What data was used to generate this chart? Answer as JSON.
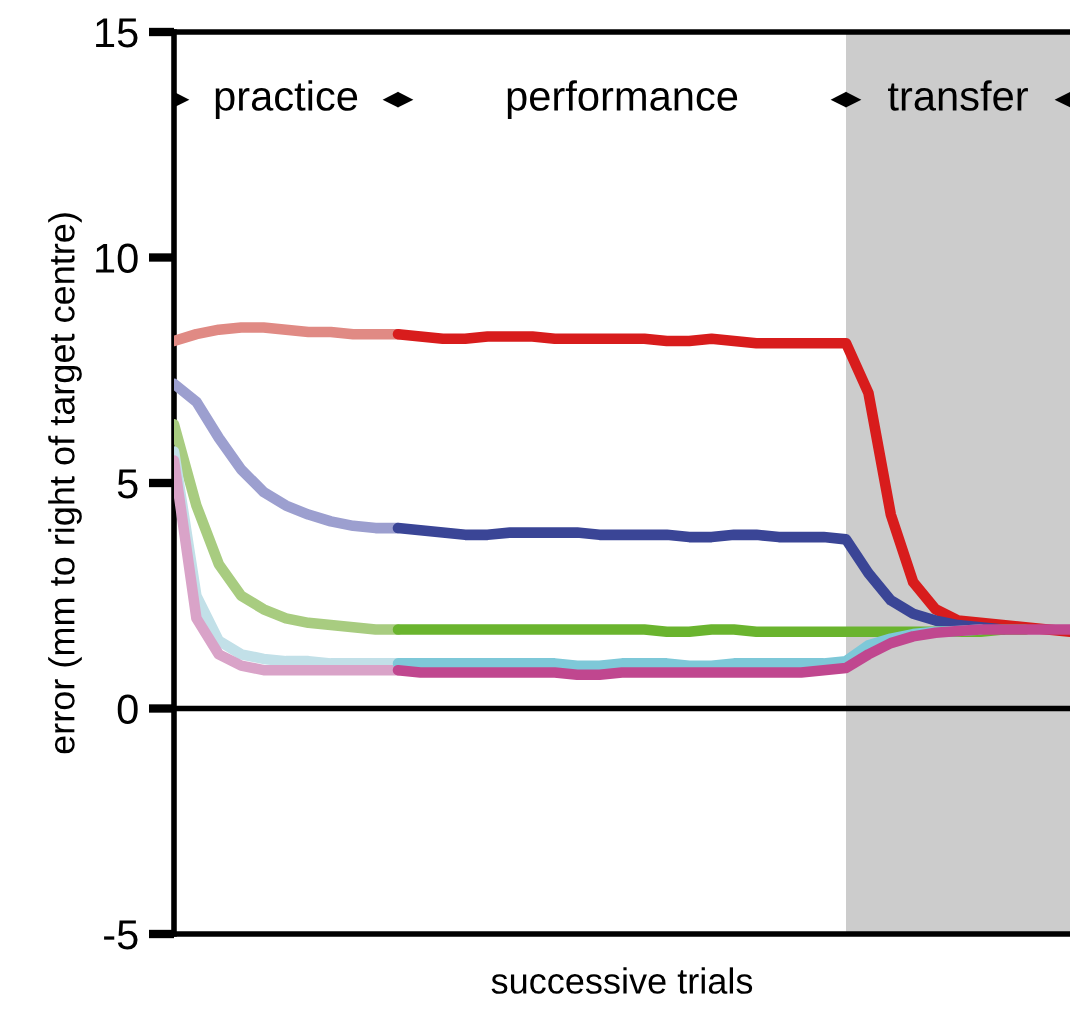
{
  "chart_data": {
    "type": "line",
    "xlabel": "successive trials",
    "ylabel": "error (mm to right of target centre)",
    "ylim": [
      -5,
      15
    ],
    "yticks": [
      -5,
      0,
      5,
      10,
      15
    ],
    "tick_labels": "y",
    "grid": false,
    "legend": false,
    "marker": "none",
    "line_style": "solid",
    "categories": [
      null,
      null,
      null,
      null,
      null,
      null,
      null,
      null,
      null,
      null,
      null,
      null,
      null,
      null,
      null,
      null,
      null,
      null,
      null,
      null,
      null,
      null,
      null,
      null,
      null,
      null,
      null,
      null,
      null,
      null,
      null,
      null,
      null,
      null,
      null,
      null,
      null,
      null,
      null,
      null,
      null
    ],
    "ref_lines": [
      {
        "axis": "y",
        "value": 0,
        "color": "#000000"
      }
    ],
    "annotations": [
      "practice",
      "performance",
      "transfer"
    ],
    "series": [
      {
        "color": "#e08a84",
        "values": [
          8.15,
          8.3,
          8.4,
          8.45,
          8.45,
          8.4,
          8.35,
          8.35,
          8.3,
          8.3,
          8.3,
          null,
          null,
          null,
          null,
          null,
          null,
          null,
          null,
          null,
          null,
          null,
          null,
          null,
          null,
          null,
          null,
          null,
          null,
          null,
          null,
          null,
          null,
          null,
          null,
          null,
          null,
          null,
          null,
          null,
          null
        ]
      },
      {
        "color": "#9c9fcf",
        "values": [
          7.2,
          6.8,
          6.0,
          5.3,
          4.8,
          4.5,
          4.3,
          4.15,
          4.05,
          4.0,
          4.0,
          null,
          null,
          null,
          null,
          null,
          null,
          null,
          null,
          null,
          null,
          null,
          null,
          null,
          null,
          null,
          null,
          null,
          null,
          null,
          null,
          null,
          null,
          null,
          null,
          null,
          null,
          null,
          null,
          null,
          null
        ]
      },
      {
        "color": "#a8cc80",
        "values": [
          6.3,
          4.5,
          3.2,
          2.5,
          2.2,
          2.0,
          1.9,
          1.85,
          1.8,
          1.75,
          1.75,
          null,
          null,
          null,
          null,
          null,
          null,
          null,
          null,
          null,
          null,
          null,
          null,
          null,
          null,
          null,
          null,
          null,
          null,
          null,
          null,
          null,
          null,
          null,
          null,
          null,
          null,
          null,
          null,
          null,
          null
        ]
      },
      {
        "color": "#c2e0e8",
        "values": [
          5.7,
          2.5,
          1.5,
          1.2,
          1.1,
          1.05,
          1.05,
          1.0,
          1.0,
          1.0,
          1.0,
          null,
          null,
          null,
          null,
          null,
          null,
          null,
          null,
          null,
          null,
          null,
          null,
          null,
          null,
          null,
          null,
          null,
          null,
          null,
          null,
          null,
          null,
          null,
          null,
          null,
          null,
          null,
          null,
          null,
          null
        ]
      },
      {
        "color": "#d9a3c8",
        "values": [
          5.5,
          2.0,
          1.2,
          0.95,
          0.85,
          0.85,
          0.85,
          0.85,
          0.85,
          0.85,
          0.85,
          null,
          null,
          null,
          null,
          null,
          null,
          null,
          null,
          null,
          null,
          null,
          null,
          null,
          null,
          null,
          null,
          null,
          null,
          null,
          null,
          null,
          null,
          null,
          null,
          null,
          null,
          null,
          null,
          null,
          null
        ]
      },
      {
        "color": "#d81c1c",
        "values": [
          null,
          null,
          null,
          null,
          null,
          null,
          null,
          null,
          null,
          null,
          8.3,
          8.25,
          8.2,
          8.2,
          8.25,
          8.25,
          8.25,
          8.2,
          8.2,
          8.2,
          8.2,
          8.2,
          8.15,
          8.15,
          8.2,
          8.15,
          8.1,
          8.1,
          8.1,
          8.1,
          8.1,
          7.0,
          4.3,
          2.8,
          2.2,
          1.95,
          1.9,
          1.85,
          1.8,
          1.75,
          1.7
        ]
      },
      {
        "color": "#3a4596",
        "values": [
          null,
          null,
          null,
          null,
          null,
          null,
          null,
          null,
          null,
          null,
          4.0,
          3.95,
          3.9,
          3.85,
          3.85,
          3.9,
          3.9,
          3.9,
          3.9,
          3.85,
          3.85,
          3.85,
          3.85,
          3.8,
          3.8,
          3.85,
          3.85,
          3.8,
          3.8,
          3.8,
          3.75,
          3.0,
          2.4,
          2.1,
          1.95,
          1.85,
          1.8,
          1.75,
          null,
          null,
          null
        ]
      },
      {
        "color": "#6ab42e",
        "values": [
          null,
          null,
          null,
          null,
          null,
          null,
          null,
          null,
          null,
          null,
          1.75,
          1.75,
          1.75,
          1.75,
          1.75,
          1.75,
          1.75,
          1.75,
          1.75,
          1.75,
          1.75,
          1.75,
          1.7,
          1.7,
          1.75,
          1.75,
          1.7,
          1.7,
          1.7,
          1.7,
          1.7,
          1.7,
          1.7,
          1.7,
          1.7,
          1.7,
          1.7,
          1.75,
          1.75,
          null,
          null
        ]
      },
      {
        "color": "#7ec8d8",
        "values": [
          null,
          null,
          null,
          null,
          null,
          null,
          null,
          null,
          null,
          null,
          1.0,
          1.0,
          1.0,
          1.0,
          1.0,
          1.0,
          1.0,
          1.0,
          0.95,
          0.95,
          1.0,
          1.0,
          1.0,
          0.95,
          0.95,
          1.0,
          1.0,
          1.0,
          1.0,
          1.0,
          1.05,
          1.4,
          1.55,
          1.65,
          1.7,
          1.72,
          1.75,
          null,
          null,
          null,
          null
        ]
      },
      {
        "color": "#c0478f",
        "values": [
          null,
          null,
          null,
          null,
          null,
          null,
          null,
          null,
          null,
          null,
          0.85,
          0.8,
          0.8,
          0.8,
          0.8,
          0.8,
          0.8,
          0.8,
          0.75,
          0.75,
          0.8,
          0.8,
          0.8,
          0.8,
          0.8,
          0.8,
          0.8,
          0.8,
          0.8,
          0.85,
          0.9,
          1.2,
          1.45,
          1.6,
          1.68,
          1.72,
          1.75,
          1.75,
          1.75,
          1.75,
          1.75
        ]
      }
    ]
  }
}
